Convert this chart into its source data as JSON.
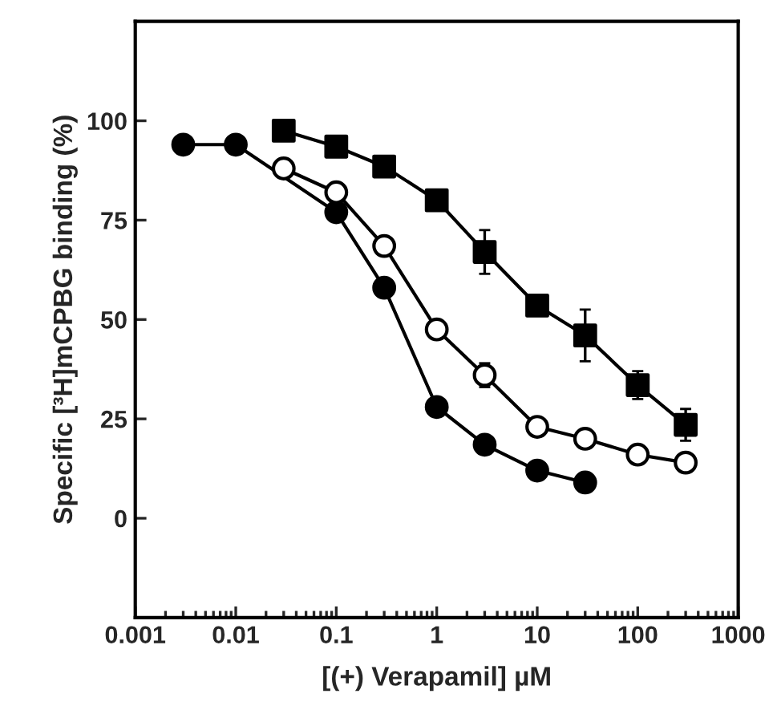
{
  "chart_data": {
    "type": "line",
    "xlabel": "[(+) Verapamil] µM",
    "ylabel": "Specific [³H]mCPBG binding (%)",
    "log": "x",
    "xlim": [
      0.001,
      1000
    ],
    "xticks": [
      0.001,
      0.01,
      0.1,
      1,
      10,
      100,
      1000
    ],
    "ylim": [
      -25,
      125
    ],
    "yticks": [
      0,
      25,
      50,
      75,
      100
    ],
    "grid": false,
    "legend": false,
    "series": [
      {
        "color": "#000000",
        "marker": "circle",
        "x": [
          0.003,
          0.01,
          0.1,
          0.3,
          1,
          3,
          10,
          30
        ],
        "values": [
          94,
          94,
          77,
          58,
          28,
          18.5,
          12,
          9
        ],
        "errors": [
          2,
          null,
          2,
          null,
          null,
          null,
          null,
          null
        ]
      },
      {
        "color": "#000000",
        "marker": "circle",
        "colors": [
          "#ffffff",
          "#ffffff",
          "#ffffff",
          "#ffffff",
          "#ffffff",
          "#ffffff",
          "#ffffff",
          "#ffffff",
          "#ffffff"
        ],
        "x": [
          0.03,
          0.1,
          0.3,
          1,
          3,
          10,
          30,
          100,
          300
        ],
        "values": [
          88,
          82,
          68.5,
          47.5,
          36,
          23,
          20,
          16,
          14
        ],
        "errors": [
          null,
          null,
          null,
          null,
          3,
          2,
          null,
          null,
          null
        ]
      },
      {
        "color": "#000000",
        "marker": "square",
        "x": [
          0.03,
          0.1,
          0.3,
          1,
          3,
          10,
          30,
          100,
          300
        ],
        "values": [
          97.5,
          93.5,
          88.5,
          80,
          67,
          53.5,
          46,
          33.5,
          23.5
        ],
        "errors": [
          null,
          null,
          null,
          2,
          5.5,
          null,
          6.5,
          3.5,
          4
        ]
      }
    ]
  }
}
